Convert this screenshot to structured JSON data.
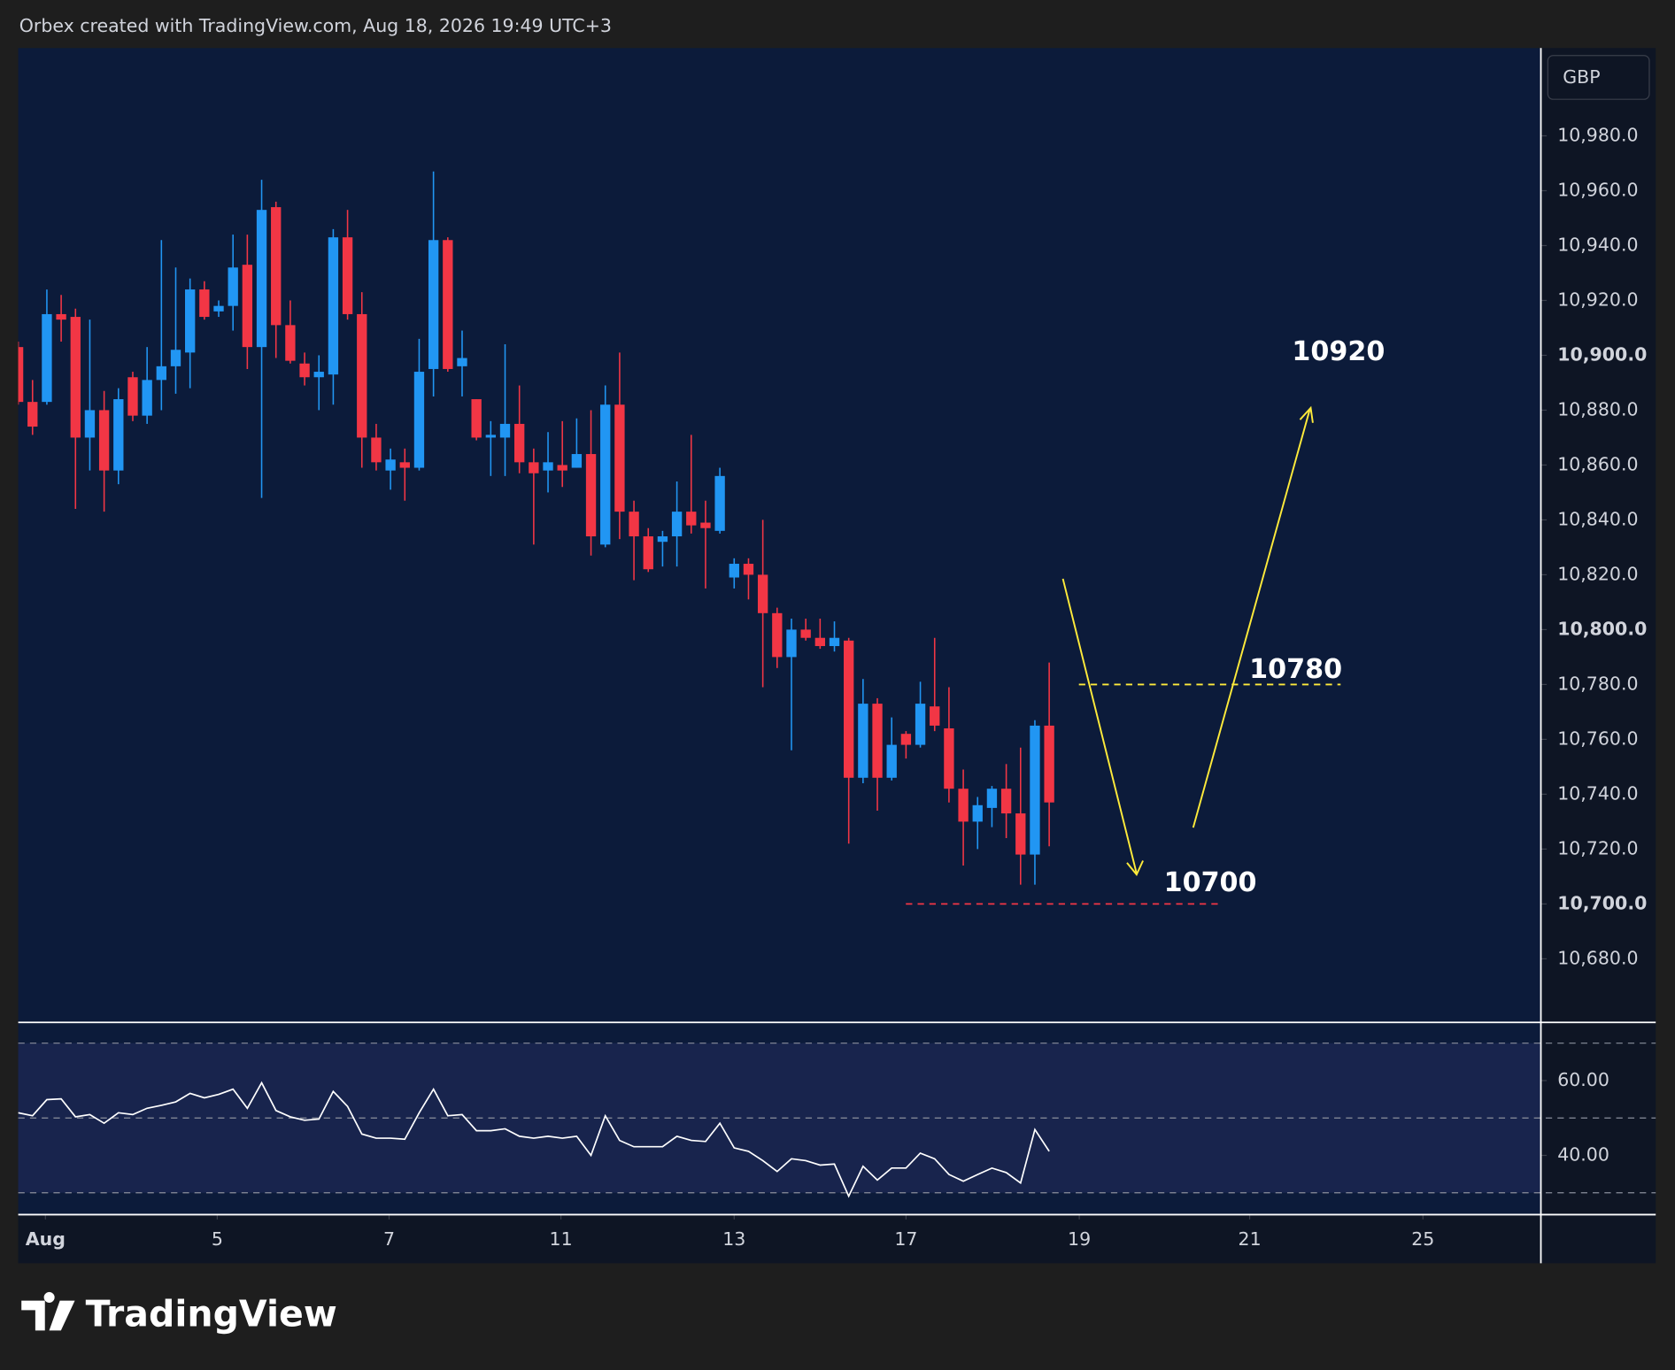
{
  "header": "Orbex created with TradingView.com, Aug 18, 2026 19:49 UTC+3",
  "brand": "TradingView",
  "chart_data": [
    {
      "type": "candlestick",
      "currency": "GBP",
      "up_color": "#2196f3",
      "down_color": "#f23645",
      "open": [
        10903,
        10883,
        10883,
        10915,
        10914,
        10870,
        10880,
        10858,
        10892,
        10878,
        10891,
        10896,
        10901,
        10924,
        10916,
        10918,
        10933,
        10903,
        10954,
        10911,
        10897,
        10892,
        10893,
        10943,
        10915,
        10870,
        10858,
        10861,
        10859,
        10895,
        10942,
        10896,
        10884,
        10870,
        10870,
        10875,
        10861,
        10858,
        10860,
        10859,
        10864,
        10831,
        10882,
        10843,
        10834,
        10832,
        10834,
        10843,
        10839,
        10836,
        10819,
        10824,
        10820,
        10806,
        10790,
        10800,
        10797,
        10794,
        10796,
        10746,
        10773,
        10746,
        10762,
        10758,
        10772,
        10764,
        10742,
        10730,
        10735,
        10742,
        10733,
        10718,
        10765
      ],
      "high": [
        10905,
        10891,
        10924,
        10922,
        10917,
        10913,
        10887,
        10888,
        10894,
        10903,
        10942,
        10932,
        10928,
        10927,
        10920,
        10944,
        10944,
        10964,
        10956,
        10920,
        10901,
        10900,
        10946,
        10953,
        10923,
        10875,
        10866,
        10866,
        10906,
        10967,
        10943,
        10909,
        10884,
        10876,
        10904,
        10889,
        10866,
        10872,
        10876,
        10877,
        10880,
        10889,
        10901,
        10847,
        10837,
        10836,
        10854,
        10871,
        10847,
        10859,
        10826,
        10826,
        10840,
        10808,
        10804,
        10804,
        10804,
        10803,
        10797,
        10782,
        10775,
        10768,
        10763,
        10781,
        10797,
        10779,
        10749,
        10739,
        10743,
        10751,
        10757,
        10767,
        10788
      ],
      "low": [
        10882,
        10871,
        10882,
        10905,
        10844,
        10858,
        10843,
        10853,
        10876,
        10875,
        10880,
        10886,
        10888,
        10913,
        10914,
        10909,
        10895,
        10848,
        10899,
        10897,
        10889,
        10880,
        10882,
        10913,
        10859,
        10858,
        10851,
        10847,
        10858,
        10885,
        10894,
        10885,
        10869,
        10856,
        10856,
        10857,
        10831,
        10850,
        10852,
        10859,
        10827,
        10830,
        10833,
        10818,
        10821,
        10823,
        10823,
        10835,
        10815,
        10835,
        10815,
        10811,
        10779,
        10786,
        10756,
        10796,
        10793,
        10792,
        10722,
        10744,
        10734,
        10745,
        10753,
        10757,
        10763,
        10737,
        10714,
        10720,
        10728,
        10724,
        10707,
        10707,
        10721
      ],
      "close": [
        10883,
        10874,
        10915,
        10913,
        10870,
        10880,
        10858,
        10884,
        10878,
        10891,
        10896,
        10902,
        10924,
        10914,
        10918,
        10932,
        10903,
        10953,
        10911,
        10898,
        10892,
        10894,
        10943,
        10915,
        10870,
        10861,
        10862,
        10859,
        10894,
        10942,
        10895,
        10899,
        10870,
        10871,
        10875,
        10861,
        10857,
        10861,
        10858,
        10864,
        10834,
        10882,
        10843,
        10834,
        10822,
        10834,
        10843,
        10838,
        10837,
        10856,
        10824,
        10820,
        10806,
        10790,
        10800,
        10797,
        10794,
        10797,
        10746,
        10773,
        10746,
        10758,
        10758,
        10773,
        10765,
        10742,
        10730,
        10736,
        10742,
        10733,
        10718,
        10765,
        10737
      ],
      "xlim": [
        0,
        106.3
      ],
      "xticks": [
        {
          "value": 1.9,
          "label": "Aug"
        },
        {
          "value": 13.9,
          "label": "5"
        },
        {
          "value": 25.9,
          "label": "7"
        },
        {
          "value": 37.9,
          "label": "11"
        },
        {
          "value": 50.0,
          "label": "13"
        },
        {
          "value": 62.0,
          "label": "17"
        },
        {
          "value": 74.1,
          "label": "19"
        },
        {
          "value": 86.0,
          "label": "21"
        },
        {
          "value": 98.1,
          "label": "25"
        }
      ],
      "ylim": [
        10657,
        11012
      ],
      "yticks": [
        {
          "value": 10680,
          "label": "10,680.0"
        },
        {
          "value": 10700,
          "label": "10,700.0"
        },
        {
          "value": 10720,
          "label": "10,720.0"
        },
        {
          "value": 10740,
          "label": "10,740.0"
        },
        {
          "value": 10760,
          "label": "10,760.0"
        },
        {
          "value": 10780,
          "label": "10,780.0"
        },
        {
          "value": 10800,
          "label": "10,800.0"
        },
        {
          "value": 10820,
          "label": "10,820.0"
        },
        {
          "value": 10840,
          "label": "10,840.0"
        },
        {
          "value": 10860,
          "label": "10,860.0"
        },
        {
          "value": 10880,
          "label": "10,880.0"
        },
        {
          "value": 10900,
          "label": "10,900.0"
        },
        {
          "value": 10920,
          "label": "10,920.0"
        },
        {
          "value": 10940,
          "label": "10,940.0"
        },
        {
          "value": 10960,
          "label": "10,960.0"
        },
        {
          "value": 10980,
          "label": "10,980.0"
        }
      ],
      "annotations": [
        {
          "value": 10920
        },
        {
          "value": 10780,
          "line_color": "#ffeb3b"
        },
        {
          "value": 10700,
          "line_color": "#f23645"
        }
      ]
    },
    {
      "type": "line",
      "color": "#ffffff",
      "values": [
        51.4,
        50.6,
        54.9,
        55.1,
        50.3,
        50.9,
        48.6,
        51.4,
        50.9,
        52.6,
        53.4,
        54.3,
        56.6,
        55.4,
        56.3,
        57.7,
        52.6,
        59.4,
        52,
        50.3,
        49.4,
        49.7,
        57.1,
        53.1,
        45.7,
        44.6,
        44.6,
        44.3,
        51.4,
        57.7,
        50.6,
        50.9,
        46.6,
        46.6,
        47.1,
        45.1,
        44.6,
        45.1,
        44.6,
        45.1,
        40,
        50.6,
        44,
        42.3,
        42.3,
        42.3,
        45.1,
        44,
        43.7,
        48.6,
        42,
        41.1,
        38.6,
        35.7,
        39.1,
        38.6,
        37.4,
        37.7,
        29.1,
        37.1,
        33.4,
        36.6,
        36.6,
        40.6,
        39.1,
        34.9,
        33.1,
        34.9,
        36.6,
        35.4,
        32.6,
        46.9,
        41.1
      ],
      "ylim": [
        24.3,
        75.4
      ],
      "yticks": [
        {
          "value": 40,
          "label": "40.00"
        },
        {
          "value": 60,
          "label": "60.00"
        }
      ],
      "levels": [
        30,
        50,
        70
      ]
    }
  ]
}
